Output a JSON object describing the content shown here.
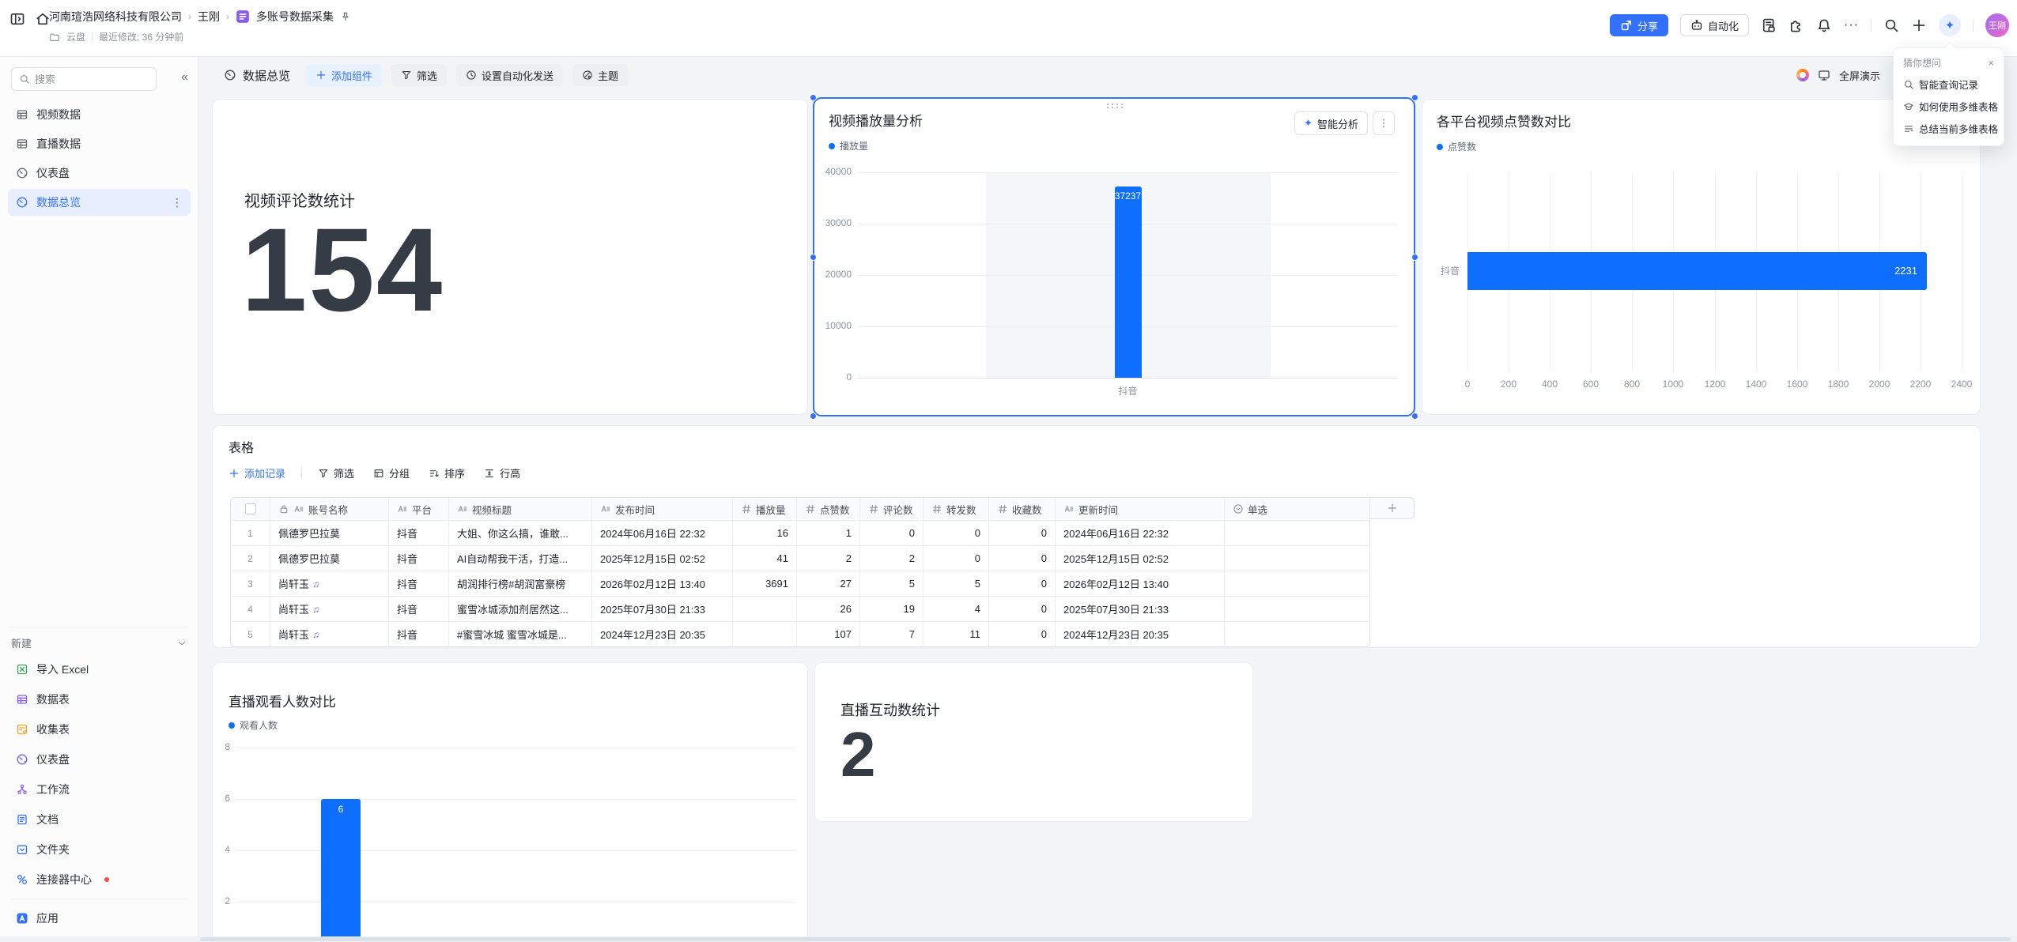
{
  "colors": {
    "accent": "#3370FF",
    "bar": "#0E6FFF",
    "selection": "#3370FF",
    "badge": "#7B61D6"
  },
  "header": {
    "breadcrumb": {
      "company": "河南瑄浩网络科技有限公司",
      "space": "王刚",
      "doc": "多账号数据采集"
    },
    "meta": {
      "storage": "云盘",
      "modified_label": "最近修改: 36 分钟前"
    },
    "share_label": "分享",
    "automation_label": "自动化",
    "avatar_text": "王刚"
  },
  "ai_popup": {
    "title": "猜你想问",
    "close": "×",
    "items": [
      "智能查询记录",
      "如何使用多维表格",
      "总结当前多维表格"
    ]
  },
  "sidebar": {
    "search_placeholder": "搜索",
    "items": [
      {
        "label": "视频数据"
      },
      {
        "label": "直播数据"
      },
      {
        "label": "仪表盘"
      },
      {
        "label": "数据总览"
      }
    ],
    "new_section_label": "新建",
    "new_items": [
      {
        "label": "导入 Excel"
      },
      {
        "label": "数据表"
      },
      {
        "label": "收集表"
      },
      {
        "label": "仪表盘"
      },
      {
        "label": "工作流"
      },
      {
        "label": "文档"
      },
      {
        "label": "文件夹"
      },
      {
        "label": "连接器中心"
      },
      {
        "label": "应用"
      }
    ]
  },
  "toolbar": {
    "title": "数据总览",
    "add_widget": "添加组件",
    "filter": "筛选",
    "auto_send": "设置自动化发送",
    "theme": "主题",
    "present": "全屏演示"
  },
  "cards": {
    "comment_stat": {
      "title": "视频评论数统计",
      "value": "154"
    },
    "interact_stat": {
      "title": "直播互动数统计",
      "value": "2"
    }
  },
  "chart_data": [
    {
      "type": "bar",
      "title": "视频播放量分析",
      "legend": [
        "播放量"
      ],
      "categories": [
        "抖音"
      ],
      "values": [
        37237
      ],
      "ylim": [
        0,
        40000
      ],
      "yticks": [
        0,
        10000,
        20000,
        30000,
        40000
      ],
      "grid": "horizontal",
      "legend_position": "top-left",
      "actions": {
        "ai": "智能分析"
      }
    },
    {
      "type": "bar",
      "orientation": "horizontal",
      "title": "各平台视频点赞数对比",
      "legend": [
        "点赞数"
      ],
      "categories": [
        "抖音"
      ],
      "values": [
        2231
      ],
      "xlim": [
        0,
        2400
      ],
      "xticks": [
        0,
        200,
        400,
        600,
        800,
        1000,
        1200,
        1400,
        1600,
        1800,
        2000,
        2200,
        2400
      ],
      "grid": "vertical",
      "legend_position": "top-left"
    },
    {
      "type": "bar",
      "title": "直播观看人数对比",
      "legend": [
        "观看人数"
      ],
      "categories": [
        "抖音"
      ],
      "values": [
        6
      ],
      "ylim": [
        0,
        8
      ],
      "yticks": [
        8,
        6,
        4,
        2
      ],
      "grid": "horizontal",
      "legend_position": "top-left"
    }
  ],
  "table": {
    "title": "表格",
    "toolbar": {
      "add": "添加记录",
      "filter": "筛选",
      "group": "分组",
      "sort": "排序",
      "row_height": "行高"
    },
    "columns": [
      {
        "label": "账号名称",
        "type": "text",
        "locked": true
      },
      {
        "label": "平台",
        "type": "text"
      },
      {
        "label": "视频标题",
        "type": "text"
      },
      {
        "label": "发布时间",
        "type": "text"
      },
      {
        "label": "播放量",
        "type": "number"
      },
      {
        "label": "点赞数",
        "type": "number"
      },
      {
        "label": "评论数",
        "type": "number"
      },
      {
        "label": "转发数",
        "type": "number"
      },
      {
        "label": "收藏数",
        "type": "number"
      },
      {
        "label": "更新时间",
        "type": "text"
      },
      {
        "label": "单选",
        "type": "select"
      }
    ],
    "rows": [
      {
        "num": "1",
        "account": "佩德罗巴拉莫",
        "badge": "",
        "cells": [
          "抖音",
          "大姐、你这么搞，谁敢...",
          "2024年06月16日 22:32",
          "16",
          "1",
          "0",
          "0",
          "0",
          "2024年06月16日 22:32",
          ""
        ]
      },
      {
        "num": "2",
        "account": "佩德罗巴拉莫",
        "badge": "",
        "cells": [
          "抖音",
          "AI自动帮我干活，打造...",
          "2025年12月15日 02:52",
          "41",
          "2",
          "2",
          "0",
          "0",
          "2025年12月15日 02:52",
          ""
        ]
      },
      {
        "num": "3",
        "account": "尚轩玉",
        "badge": "♫",
        "cells": [
          "抖音",
          "胡润排行榜#胡润富豪榜",
          "2026年02月12日 13:40",
          "3691",
          "27",
          "5",
          "5",
          "0",
          "2026年02月12日 13:40",
          ""
        ]
      },
      {
        "num": "4",
        "account": "尚轩玉",
        "badge": "♫",
        "cells": [
          "抖音",
          "蜜雪冰城添加剂居然这...",
          "2025年07月30日 21:33",
          "",
          "26",
          "19",
          "4",
          "0",
          "2025年07月30日 21:33",
          ""
        ]
      },
      {
        "num": "5",
        "account": "尚轩玉",
        "badge": "♫",
        "cells": [
          "抖音",
          "#蜜雪冰城 蜜雪冰城是...",
          "2024年12月23日 20:35",
          "",
          "107",
          "7",
          "11",
          "0",
          "2024年12月23日 20:35",
          ""
        ]
      }
    ]
  }
}
